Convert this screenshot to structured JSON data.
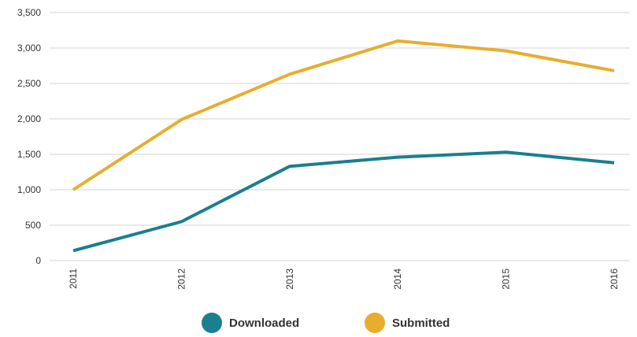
{
  "chart_data": {
    "type": "line",
    "title": "",
    "xlabel": "",
    "ylabel": "",
    "categories": [
      "2011",
      "2012",
      "2013",
      "2014",
      "2015",
      "2016"
    ],
    "ylim": [
      0,
      3500
    ],
    "yticks": [
      0,
      500,
      1000,
      1500,
      2000,
      2500,
      3000,
      3500
    ],
    "ytick_labels": [
      "0",
      "500",
      "1,000",
      "1,500",
      "2,000",
      "2,500",
      "3,000",
      "3,500"
    ],
    "grid": "horizontal",
    "legend_position": "bottom",
    "series": [
      {
        "name": "Downloaded",
        "color": "#1a7f8e",
        "values": [
          140,
          550,
          1330,
          1460,
          1530,
          1380
        ]
      },
      {
        "name": "Submitted",
        "color": "#e8ad2e",
        "values": [
          1000,
          1990,
          2630,
          3100,
          2960,
          2680
        ]
      }
    ]
  }
}
